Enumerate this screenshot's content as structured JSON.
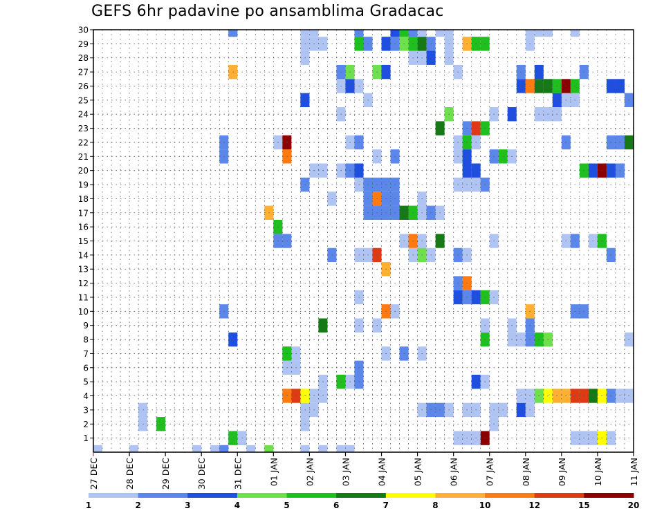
{
  "chart_data": {
    "type": "heatmap",
    "title": "GEFS 6hr padavine po ansamblima Gradacac",
    "members": [
      1,
      2,
      3,
      4,
      5,
      6,
      7,
      8,
      9,
      10,
      11,
      12,
      13,
      14,
      15,
      16,
      17,
      18,
      19,
      20,
      21,
      22,
      23,
      24,
      25,
      26,
      27,
      28,
      29,
      30
    ],
    "ylim": [
      0,
      30
    ],
    "steps_per_day": 4,
    "total_steps": 60,
    "date_ticks": [
      "27 DEC",
      "28 DEC",
      "29 DEC",
      "30 DEC",
      "31 DEC",
      "01 JAN",
      "02 JAN",
      "03 JAN",
      "04 JAN",
      "05 JAN",
      "06 JAN",
      "07 JAN",
      "08 JAN",
      "09 JAN",
      "10 JAN",
      "11 JAN"
    ],
    "colorbar": {
      "labels": [
        "1",
        "2",
        "3",
        "4",
        "5",
        "6",
        "7",
        "8",
        "10",
        "12",
        "15",
        "20"
      ],
      "colors": [
        "#b0c4f4",
        "#5b86ea",
        "#1e4fe0",
        "#6ee04c",
        "#1fbf1f",
        "#157a15",
        "#ffff00",
        "#ffb030",
        "#ff7a10",
        "#e03a14",
        "#8b0000"
      ]
    },
    "cells": [
      [
        28,
        0,
        1
      ],
      [
        27,
        0,
        1
      ],
      [
        25,
        0,
        1
      ],
      [
        23,
        0,
        1
      ],
      [
        19,
        0,
        4
      ],
      [
        17,
        0,
        1
      ],
      [
        13,
        0,
        1
      ],
      [
        11,
        0,
        1
      ],
      [
        4,
        0,
        1
      ],
      [
        0,
        0,
        1
      ],
      [
        14,
        0,
        1
      ],
      [
        14,
        0,
        2
      ],
      [
        15,
        1,
        1
      ],
      [
        15,
        1,
        5
      ],
      [
        16,
        1,
        5
      ],
      [
        16,
        1,
        1
      ],
      [
        7,
        2,
        5
      ],
      [
        5,
        2,
        1
      ],
      [
        5,
        3,
        1
      ],
      [
        23,
        2,
        1
      ],
      [
        23,
        3,
        1
      ],
      [
        24,
        3,
        1
      ],
      [
        24,
        4,
        1
      ],
      [
        25,
        4,
        1
      ],
      [
        25,
        5,
        1
      ],
      [
        44,
        2,
        1
      ],
      [
        44,
        3,
        1
      ],
      [
        45,
        3,
        1
      ],
      [
        54,
        1,
        1
      ],
      [
        55,
        1,
        1
      ],
      [
        57,
        1,
        1
      ],
      [
        56,
        1,
        7
      ],
      [
        53,
        1,
        1
      ],
      [
        41,
        1,
        1
      ],
      [
        43,
        1,
        11
      ],
      [
        42,
        1,
        1
      ],
      [
        40,
        1,
        1
      ],
      [
        41,
        3,
        1
      ],
      [
        42,
        3,
        1
      ],
      [
        47,
        3,
        3
      ],
      [
        48,
        3,
        1
      ],
      [
        21,
        4,
        9
      ],
      [
        22,
        4,
        10
      ],
      [
        23,
        4,
        7
      ],
      [
        36,
        3,
        1
      ],
      [
        37,
        3,
        2
      ],
      [
        38,
        3,
        2
      ],
      [
        39,
        3,
        1
      ],
      [
        47,
        4,
        1
      ],
      [
        48,
        4,
        1
      ],
      [
        49,
        4,
        4
      ],
      [
        50,
        4,
        7
      ],
      [
        51,
        4,
        8
      ],
      [
        52,
        4,
        8
      ],
      [
        53,
        4,
        10
      ],
      [
        54,
        4,
        10
      ],
      [
        55,
        4,
        6
      ],
      [
        56,
        4,
        7
      ],
      [
        57,
        4,
        2
      ],
      [
        58,
        4,
        1
      ],
      [
        59,
        4,
        1
      ],
      [
        28,
        5,
        1
      ],
      [
        27,
        5,
        5
      ],
      [
        29,
        5,
        2
      ],
      [
        29,
        6,
        2
      ],
      [
        42,
        5,
        3
      ],
      [
        43,
        5,
        1
      ],
      [
        21,
        6,
        1
      ],
      [
        22,
        6,
        1
      ],
      [
        21,
        7,
        1
      ],
      [
        21,
        7,
        1
      ],
      [
        22,
        7,
        1
      ],
      [
        21,
        7,
        5
      ],
      [
        32,
        7,
        1
      ],
      [
        34,
        7,
        2
      ],
      [
        36,
        7,
        1
      ],
      [
        15,
        8,
        3
      ],
      [
        43,
        8,
        5
      ],
      [
        46,
        8,
        1
      ],
      [
        47,
        8,
        1
      ],
      [
        48,
        8,
        2
      ],
      [
        49,
        8,
        5
      ],
      [
        50,
        8,
        4
      ],
      [
        59,
        8,
        1
      ],
      [
        25,
        9,
        6
      ],
      [
        29,
        9,
        1
      ],
      [
        31,
        9,
        1
      ],
      [
        43,
        9,
        1
      ],
      [
        46,
        9,
        1
      ],
      [
        48,
        9,
        2
      ],
      [
        14,
        10,
        2
      ],
      [
        32,
        10,
        9
      ],
      [
        33,
        10,
        1
      ],
      [
        48,
        10,
        8
      ],
      [
        53,
        10,
        2
      ],
      [
        54,
        10,
        2
      ],
      [
        29,
        11,
        1
      ],
      [
        40,
        11,
        3
      ],
      [
        41,
        11,
        2
      ],
      [
        42,
        11,
        3
      ],
      [
        43,
        11,
        5
      ],
      [
        44,
        11,
        1
      ],
      [
        40,
        12,
        2
      ],
      [
        41,
        12,
        9
      ],
      [
        32,
        13,
        8
      ],
      [
        26,
        14,
        2
      ],
      [
        29,
        14,
        1
      ],
      [
        30,
        14,
        1
      ],
      [
        31,
        14,
        10
      ],
      [
        35,
        14,
        1
      ],
      [
        36,
        14,
        4
      ],
      [
        37,
        14,
        1
      ],
      [
        40,
        14,
        2
      ],
      [
        41,
        14,
        1
      ],
      [
        57,
        14,
        2
      ],
      [
        20,
        15,
        2
      ],
      [
        21,
        15,
        2
      ],
      [
        34,
        15,
        1
      ],
      [
        35,
        15,
        9
      ],
      [
        36,
        15,
        1
      ],
      [
        38,
        15,
        6
      ],
      [
        44,
        15,
        1
      ],
      [
        52,
        15,
        1
      ],
      [
        53,
        15,
        2
      ],
      [
        55,
        15,
        1
      ],
      [
        56,
        15,
        5
      ],
      [
        20,
        16,
        5
      ],
      [
        19,
        17,
        8
      ],
      [
        30,
        17,
        2
      ],
      [
        31,
        17,
        2
      ],
      [
        32,
        17,
        2
      ],
      [
        33,
        17,
        2
      ],
      [
        34,
        17,
        6
      ],
      [
        35,
        17,
        5
      ],
      [
        36,
        17,
        1
      ],
      [
        37,
        17,
        2
      ],
      [
        38,
        17,
        1
      ],
      [
        26,
        18,
        1
      ],
      [
        30,
        18,
        2
      ],
      [
        31,
        18,
        9
      ],
      [
        32,
        18,
        2
      ],
      [
        33,
        18,
        2
      ],
      [
        36,
        18,
        1
      ],
      [
        23,
        19,
        2
      ],
      [
        29,
        19,
        1
      ],
      [
        30,
        19,
        2
      ],
      [
        31,
        19,
        2
      ],
      [
        32,
        19,
        2
      ],
      [
        33,
        19,
        2
      ],
      [
        40,
        19,
        1
      ],
      [
        41,
        19,
        1
      ],
      [
        42,
        19,
        1
      ],
      [
        43,
        19,
        2
      ],
      [
        24,
        20,
        1
      ],
      [
        25,
        20,
        1
      ],
      [
        27,
        20,
        1
      ],
      [
        28,
        20,
        2
      ],
      [
        29,
        20,
        3
      ],
      [
        41,
        20,
        3
      ],
      [
        42,
        20,
        3
      ],
      [
        54,
        20,
        5
      ],
      [
        55,
        20,
        3
      ],
      [
        56,
        20,
        11
      ],
      [
        57,
        20,
        3
      ],
      [
        58,
        20,
        2
      ],
      [
        14,
        21,
        2
      ],
      [
        21,
        21,
        9
      ],
      [
        31,
        21,
        1
      ],
      [
        33,
        21,
        2
      ],
      [
        40,
        21,
        1
      ],
      [
        41,
        21,
        3
      ],
      [
        44,
        21,
        2
      ],
      [
        45,
        21,
        5
      ],
      [
        46,
        21,
        1
      ],
      [
        14,
        22,
        2
      ],
      [
        20,
        22,
        1
      ],
      [
        21,
        22,
        13
      ],
      [
        28,
        22,
        1
      ],
      [
        29,
        22,
        2
      ],
      [
        40,
        22,
        1
      ],
      [
        41,
        22,
        5
      ],
      [
        42,
        22,
        1
      ],
      [
        52,
        22,
        2
      ],
      [
        57,
        22,
        2
      ],
      [
        58,
        22,
        2
      ],
      [
        59,
        22,
        6
      ],
      [
        41,
        23,
        2
      ],
      [
        42,
        23,
        10
      ],
      [
        43,
        23,
        5
      ],
      [
        38,
        23,
        6
      ],
      [
        27,
        24,
        1
      ],
      [
        39,
        24,
        4
      ],
      [
        44,
        24,
        1
      ],
      [
        46,
        24,
        3
      ],
      [
        49,
        24,
        1
      ],
      [
        50,
        24,
        1
      ],
      [
        51,
        24,
        1
      ],
      [
        23,
        25,
        3
      ],
      [
        30,
        25,
        1
      ],
      [
        52,
        25,
        1
      ],
      [
        53,
        25,
        1
      ],
      [
        51,
        25,
        3
      ],
      [
        59,
        25,
        2
      ],
      [
        27,
        26,
        1
      ],
      [
        28,
        26,
        3
      ],
      [
        29,
        26,
        1
      ],
      [
        47,
        26,
        3
      ],
      [
        48,
        26,
        9
      ],
      [
        49,
        26,
        6
      ],
      [
        50,
        26,
        6
      ],
      [
        51,
        26,
        5
      ],
      [
        52,
        26,
        12
      ],
      [
        53,
        26,
        5
      ],
      [
        57,
        26,
        3
      ],
      [
        58,
        26,
        3
      ],
      [
        15,
        27,
        8
      ],
      [
        27,
        27,
        2
      ],
      [
        28,
        27,
        4
      ],
      [
        31,
        27,
        4
      ],
      [
        32,
        27,
        3
      ],
      [
        40,
        27,
        1
      ],
      [
        47,
        27,
        2
      ],
      [
        49,
        27,
        3
      ],
      [
        54,
        27,
        2
      ],
      [
        23,
        28,
        1
      ],
      [
        35,
        28,
        1
      ],
      [
        36,
        28,
        1
      ],
      [
        37,
        28,
        3
      ],
      [
        39,
        28,
        1
      ],
      [
        23,
        29,
        1
      ],
      [
        24,
        29,
        1
      ],
      [
        25,
        29,
        1
      ],
      [
        29,
        29,
        5
      ],
      [
        30,
        29,
        2
      ],
      [
        32,
        29,
        3
      ],
      [
        33,
        29,
        2
      ],
      [
        34,
        29,
        4
      ],
      [
        35,
        29,
        5
      ],
      [
        36,
        29,
        6
      ],
      [
        37,
        29,
        2
      ],
      [
        39,
        29,
        1
      ],
      [
        41,
        29,
        8
      ],
      [
        42,
        29,
        5
      ],
      [
        43,
        29,
        5
      ],
      [
        48,
        29,
        1
      ],
      [
        15,
        30,
        2
      ],
      [
        23,
        30,
        1
      ],
      [
        24,
        30,
        1
      ],
      [
        29,
        30,
        2
      ],
      [
        33,
        30,
        3
      ],
      [
        34,
        30,
        5
      ],
      [
        35,
        30,
        2
      ],
      [
        36,
        30,
        1
      ],
      [
        38,
        30,
        1
      ],
      [
        39,
        30,
        1
      ],
      [
        48,
        30,
        1
      ],
      [
        49,
        30,
        1
      ],
      [
        50,
        30,
        1
      ],
      [
        53,
        30,
        1
      ],
      [
        15,
        30,
        2
      ],
      [
        22,
        31,
        1
      ],
      [
        24,
        31,
        1
      ],
      [
        25,
        31,
        1
      ],
      [
        33,
        31,
        3
      ],
      [
        34,
        31,
        8
      ],
      [
        36,
        31,
        1
      ],
      [
        40,
        31,
        1
      ],
      [
        41,
        31,
        1
      ],
      [
        14,
        32,
        2
      ],
      [
        21,
        32,
        2
      ],
      [
        28,
        32,
        1
      ],
      [
        29,
        32,
        1
      ],
      [
        30,
        32,
        1
      ],
      [
        34,
        32,
        1
      ],
      [
        35,
        32,
        1
      ],
      [
        37,
        32,
        1
      ],
      [
        39,
        32,
        3
      ],
      [
        40,
        32,
        6
      ],
      [
        44,
        32,
        1
      ],
      [
        59,
        32,
        1
      ]
    ]
  }
}
